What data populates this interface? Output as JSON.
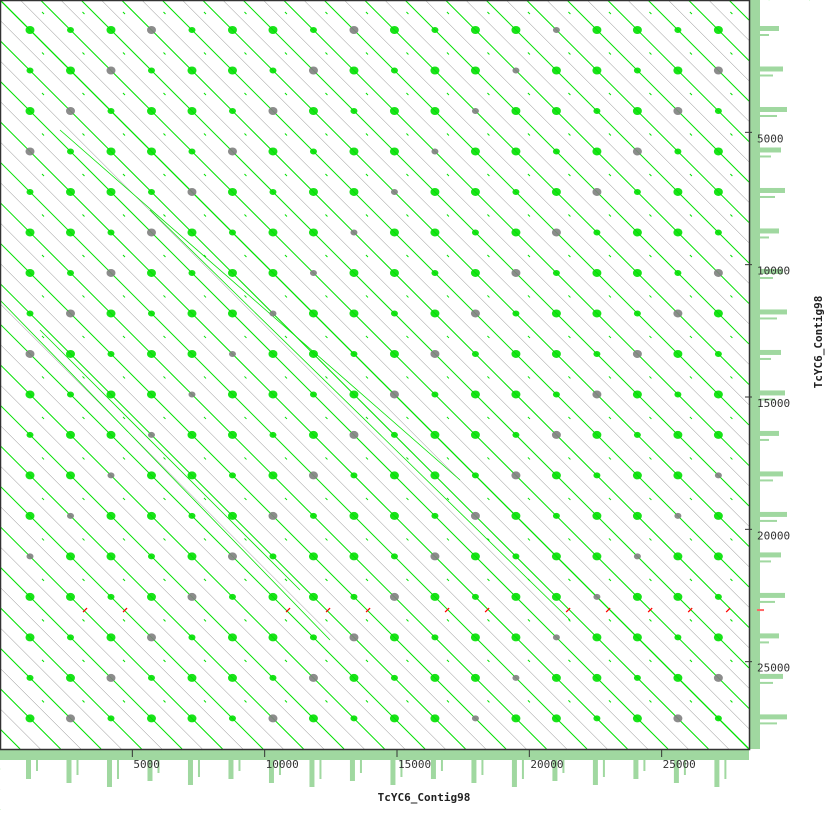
{
  "chart_data": {
    "type": "scatter",
    "subtype": "dot plot (self-alignment)",
    "xlabel": "TcYC6_Contig98",
    "ylabel": "TcYC6_Contig98",
    "xlim": [
      0,
      28300
    ],
    "ylim": [
      0,
      28300
    ],
    "y_inverted": true,
    "xticks": [
      5000,
      10000,
      15000,
      20000,
      25000
    ],
    "yticks": [
      5000,
      10000,
      15000,
      20000,
      25000
    ],
    "xtick_labels": [
      "5000",
      "10000",
      "15000",
      "20000",
      "25000"
    ],
    "ytick_labels": [
      "5000",
      "10000",
      "15000",
      "20000",
      "25000"
    ],
    "repeat_period_bp": 1530,
    "main_diagonal": [
      [
        0,
        0
      ],
      [
        28300,
        28300
      ]
    ],
    "red_marks_y": 23050,
    "red_marks_x": [
      3212,
      4724,
      10884,
      12396,
      13908,
      16893,
      18405,
      21466,
      22978,
      24565,
      26077,
      27513
    ],
    "colors": {
      "forward_match": "#00e000",
      "weak_match": "#808080",
      "reverse_match": "#ff0000",
      "coverage_histogram": "#a0d8a0",
      "axis": "#333333"
    }
  }
}
